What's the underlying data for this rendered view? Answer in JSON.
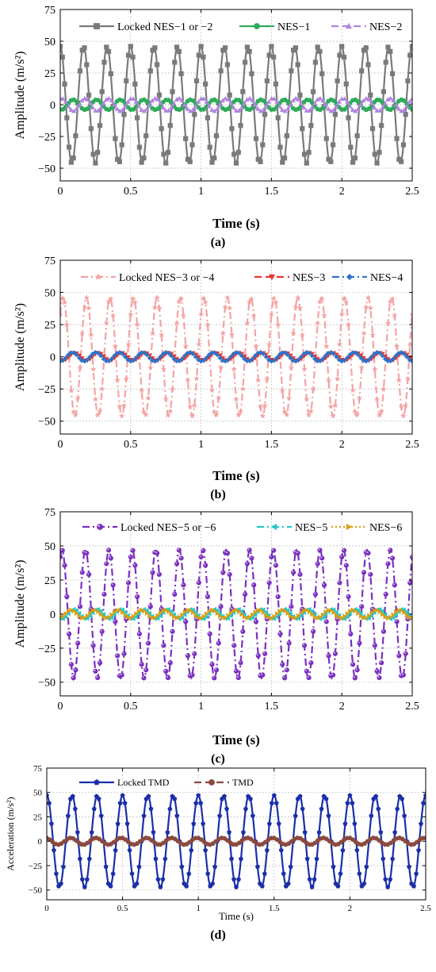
{
  "chart_data": [
    {
      "type": "line",
      "panel_label": "(a)",
      "xlabel": "Time (s)",
      "ylabel": "Amplitude (m/s²)",
      "xlim": [
        0,
        2.5
      ],
      "ylim": [
        -60,
        75
      ],
      "xticks": [
        "0",
        "0.5",
        "1",
        "1.5",
        "2",
        "2.5"
      ],
      "yticks": [
        "-50",
        "-25",
        "0",
        "25",
        "50",
        "75"
      ],
      "grid": true,
      "legend_position": "top",
      "series": [
        {
          "name": "Locked NES−1 or −2",
          "color": "#7a7a7a",
          "dash": "solid",
          "marker": "square",
          "amplitude": 46,
          "frequency_hz": 6,
          "phase": 1.6
        },
        {
          "name": "NES−1",
          "color": "#2eab5b",
          "dash": "solid",
          "marker": "circle",
          "amplitude": 4,
          "frequency_hz": 6,
          "phase": 4.4
        },
        {
          "name": "NES−2",
          "color": "#b285e0",
          "dash": "dash",
          "marker": "triangle",
          "amplitude": 5,
          "frequency_hz": 6,
          "phase": 1.2
        }
      ]
    },
    {
      "type": "line",
      "panel_label": "(b)",
      "xlabel": "Time (s)",
      "ylabel": "Amplitude (m/s²)",
      "xlim": [
        0,
        2.5
      ],
      "ylim": [
        -60,
        75
      ],
      "xticks": [
        "0",
        "0.5",
        "1",
        "1.5",
        "2",
        "2.5"
      ],
      "yticks": [
        "-50",
        "-25",
        "0",
        "25",
        "50",
        "75"
      ],
      "grid": true,
      "legend_position": "top",
      "series": [
        {
          "name": "Locked NES−3 or −4",
          "color": "#f4a3a3",
          "dash": "dashdot",
          "marker": "star",
          "amplitude": 46,
          "frequency_hz": 6,
          "phase": 0.8
        },
        {
          "name": "NES−3",
          "color": "#e8332d",
          "dash": "dash",
          "marker": "triangle-down",
          "amplitude": 3,
          "frequency_hz": 6,
          "phase": 4.0
        },
        {
          "name": "NES−4",
          "color": "#2f72c9",
          "dash": "dashdot",
          "marker": "diamond",
          "amplitude": 3.5,
          "frequency_hz": 6,
          "phase": 4.6
        }
      ]
    },
    {
      "type": "line",
      "panel_label": "(c)",
      "xlabel": "Time (s)",
      "ylabel": "Amplitude (m/s²)",
      "xlim": [
        0,
        2.5
      ],
      "ylim": [
        -60,
        75
      ],
      "xticks": [
        "0",
        "0.5",
        "1",
        "1.5",
        "2",
        "2.5"
      ],
      "yticks": [
        "-50",
        "-25",
        "0",
        "25",
        "50",
        "75"
      ],
      "grid": true,
      "legend_position": "top",
      "series": [
        {
          "name": "Locked NES−5 or −6",
          "color": "#7b2fbf",
          "dash": "dashdot",
          "marker": "sphere",
          "amplitude": 47,
          "frequency_hz": 6,
          "phase": 1.1
        },
        {
          "name": "NES−5",
          "color": "#22c7c9",
          "dash": "dashdot",
          "marker": "triangle-left",
          "amplitude": 3.5,
          "frequency_hz": 6,
          "phase": 4.2
        },
        {
          "name": "NES−6",
          "color": "#d6a018",
          "dash": "dot",
          "marker": "triangle-right",
          "amplitude": 3,
          "frequency_hz": 6,
          "phase": 4.9
        }
      ]
    },
    {
      "type": "line",
      "panel_label": "(d)",
      "xlabel": "Time (s)",
      "ylabel": "Acceleration (m/s²)",
      "xlim": [
        0,
        2.5
      ],
      "ylim": [
        -60,
        75
      ],
      "xticks": [
        "0",
        "0.5",
        "1",
        "1.5",
        "2",
        "2.5"
      ],
      "yticks": [
        "-50",
        "-25",
        "0",
        "25",
        "50",
        "75"
      ],
      "grid": true,
      "legend_position": "top",
      "series": [
        {
          "name": "Locked TMD",
          "color": "#1a2fa8",
          "dash": "solid",
          "marker": "pentagon",
          "amplitude": 47,
          "frequency_hz": 6,
          "phase": 1.57
        },
        {
          "name": "TMD",
          "color": "#8a4a3f",
          "dash": "dash",
          "marker": "circle",
          "amplitude": 3.5,
          "frequency_hz": 6,
          "phase": 1.9
        }
      ]
    }
  ]
}
